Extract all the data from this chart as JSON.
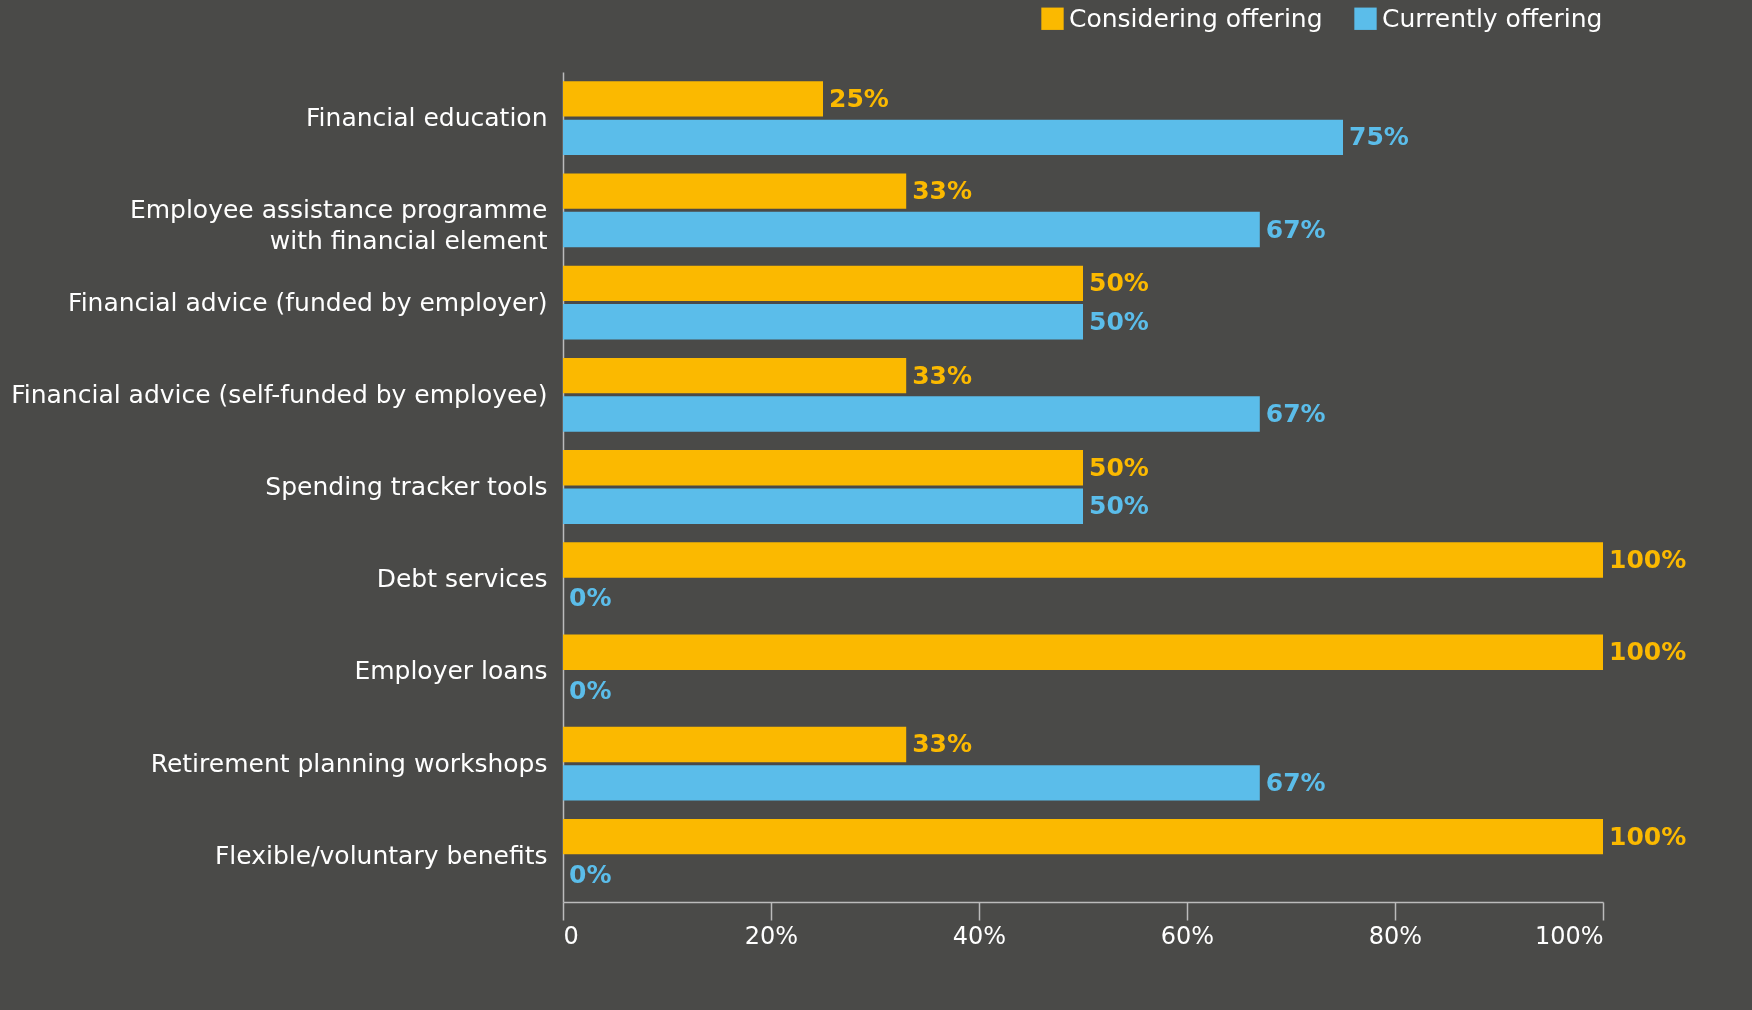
{
  "chart_data": {
    "type": "bar",
    "orientation": "horizontal",
    "categories": [
      "Financial education",
      "Employee assistance programme\nwith financial element",
      "Financial advice (funded by employer)",
      "Financial advice (self-funded by employee)",
      "Spending tracker tools",
      "Debt services",
      "Employer loans",
      "Retirement planning workshops",
      "Flexible/voluntary benefits"
    ],
    "series": [
      {
        "name": "Considering offering",
        "color": "#fbb900",
        "values": [
          25,
          33,
          50,
          33,
          50,
          100,
          100,
          33,
          100
        ],
        "value_labels": [
          "25%",
          "33%",
          "50%",
          "33%",
          "50%",
          "100%",
          "100%",
          "33%",
          "100%"
        ]
      },
      {
        "name": "Currently offering",
        "color": "#5bbdea",
        "values": [
          75,
          67,
          50,
          67,
          50,
          0,
          0,
          67,
          0
        ],
        "value_labels": [
          "75%",
          "67%",
          "50%",
          "67%",
          "50%",
          "0%",
          "0%",
          "67%",
          "0%"
        ]
      }
    ],
    "xlim": [
      0,
      100
    ],
    "xticks": [
      0,
      {
        "value": 20,
        "label": "20%"
      },
      {
        "value": 40,
        "label": "40%"
      },
      {
        "value": 60,
        "label": "60%"
      },
      {
        "value": 80,
        "label": "80%"
      },
      {
        "value": 100,
        "label": "100%"
      }
    ],
    "grid": false,
    "legend": "top right"
  }
}
